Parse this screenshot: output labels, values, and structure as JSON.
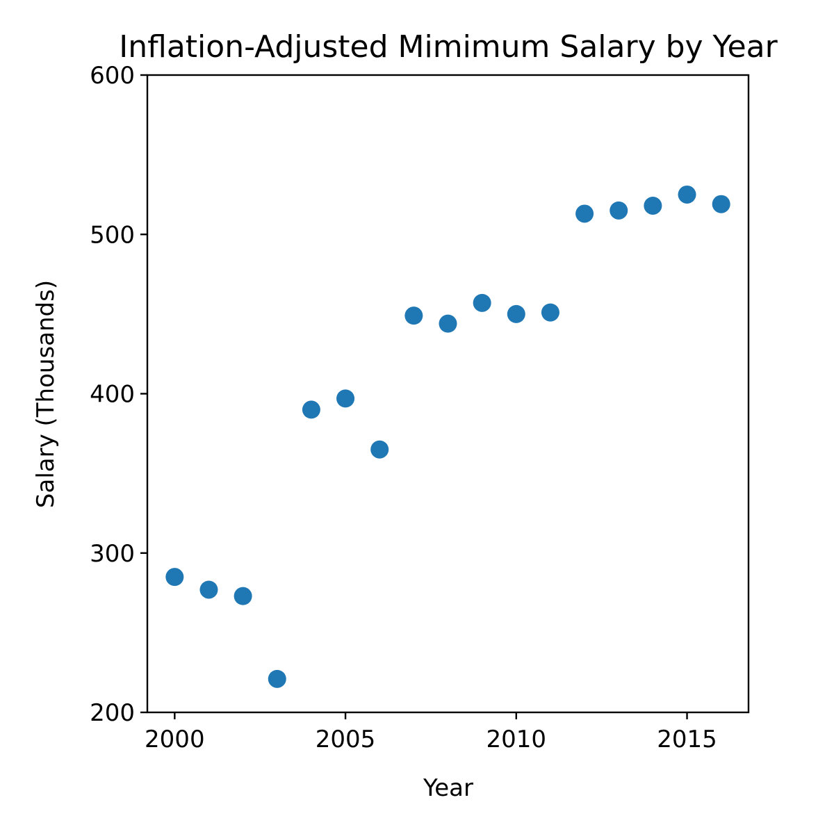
{
  "chart_data": {
    "type": "scatter",
    "title": "Inflation-Adjusted Mimimum Salary by Year",
    "xlabel": "Year",
    "ylabel": "Salary (Thousands)",
    "xlim": [
      1999.2,
      2016.8
    ],
    "ylim": [
      200,
      600
    ],
    "xticks": [
      2000,
      2005,
      2010,
      2015
    ],
    "yticks": [
      200,
      300,
      400,
      500,
      600
    ],
    "grid": false,
    "color": "#1f77b4",
    "series": [
      {
        "x": [
          2000,
          2001,
          2002,
          2003,
          2004,
          2005,
          2006,
          2007,
          2008,
          2009,
          2010,
          2011,
          2012,
          2013,
          2014,
          2015,
          2016
        ],
        "y": [
          285,
          277,
          273,
          221,
          390,
          397,
          365,
          449,
          444,
          457,
          450,
          451,
          513,
          515,
          518,
          525,
          519
        ]
      }
    ]
  }
}
